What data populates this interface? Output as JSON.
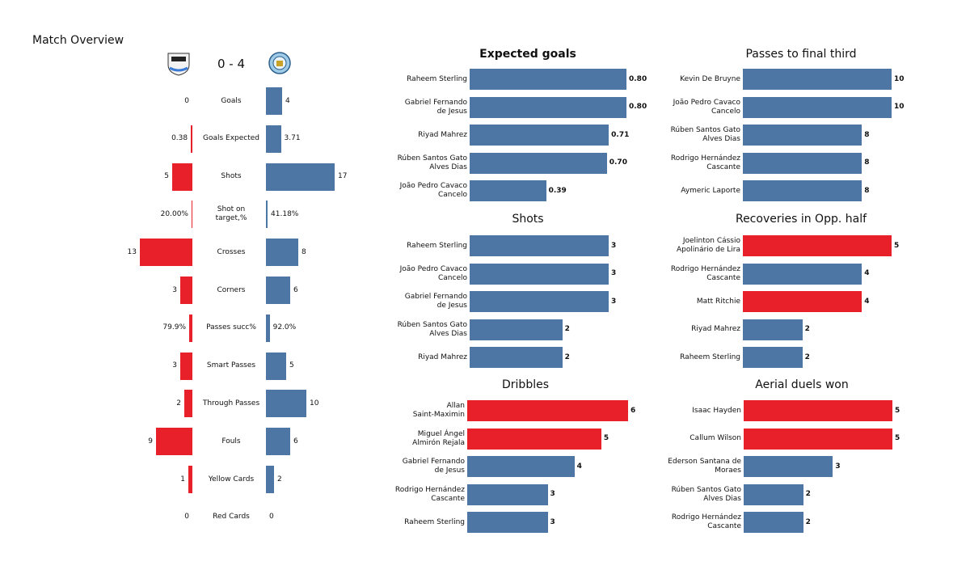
{
  "chart_data": [
    {
      "type": "mirror_bar",
      "title": "Match Overview",
      "score": "0 - 4",
      "categories": [
        "Goals",
        "Goals Expected",
        "Shots",
        "Shot on\ntarget,%",
        "Crosses",
        "Corners",
        "Passes succ%",
        "Smart Passes",
        "Through Passes",
        "Fouls",
        "Yellow Cards",
        "Red Cards"
      ],
      "series": [
        {
          "color": "#e8202a",
          "values": [
            0,
            0.38,
            5,
            0.2,
            13,
            3,
            0.799,
            3,
            2,
            9,
            1,
            0
          ],
          "value_labels": [
            "0",
            "0.38",
            "5",
            "20.00%",
            "13",
            "3",
            "79.9%",
            "3",
            "2",
            "9",
            "1",
            "0"
          ]
        },
        {
          "color": "#4e76a5",
          "values": [
            4,
            3.71,
            17,
            0.4118,
            8,
            6,
            0.92,
            5,
            10,
            6,
            2,
            0
          ],
          "value_labels": [
            "4",
            "3.71",
            "17",
            "41.18%",
            "8",
            "6",
            "92.0%",
            "5",
            "10",
            "6",
            "2",
            "0"
          ]
        }
      ]
    },
    {
      "type": "hbar",
      "title": "Expected goals",
      "categories": [
        "Raheem Sterling",
        "Gabriel Fernando\nde Jesus",
        "Riyad Mahrez",
        "Rúben  Santos Gato\nAlves Dias",
        "João Pedro Cavaco\nCancelo"
      ],
      "values": [
        0.8,
        0.8,
        0.71,
        0.7,
        0.39
      ],
      "value_labels": [
        "0.80",
        "0.80",
        "0.71",
        "0.70",
        "0.39"
      ],
      "colors": [
        "#4e76a5",
        "#4e76a5",
        "#4e76a5",
        "#4e76a5",
        "#4e76a5"
      ]
    },
    {
      "type": "hbar",
      "title": "Shots",
      "categories": [
        "Raheem Sterling",
        "João Pedro Cavaco\nCancelo",
        "Gabriel Fernando\nde Jesus",
        "Rúben  Santos Gato\nAlves Dias",
        "Riyad Mahrez"
      ],
      "values": [
        3,
        3,
        3,
        2,
        2
      ],
      "colors": [
        "#4e76a5",
        "#4e76a5",
        "#4e76a5",
        "#4e76a5",
        "#4e76a5"
      ]
    },
    {
      "type": "hbar",
      "title": "Dribbles",
      "categories": [
        "Allan\nSaint-Maximin",
        "Miguel Ángel\nAlmirón Rejala",
        "Gabriel Fernando\nde Jesus",
        "Rodrigo Hernández\nCascante",
        "Raheem Sterling"
      ],
      "values": [
        6,
        5,
        4,
        3,
        3
      ],
      "colors": [
        "#e8202a",
        "#e8202a",
        "#4e76a5",
        "#4e76a5",
        "#4e76a5"
      ]
    },
    {
      "type": "hbar",
      "title": "Passes to final third",
      "categories": [
        "Kevin De Bruyne",
        "João Pedro Cavaco\nCancelo",
        "Rúben  Santos Gato\nAlves Dias",
        "Rodrigo Hernández\nCascante",
        "Aymeric  Laporte"
      ],
      "values": [
        10,
        10,
        8,
        8,
        8
      ],
      "colors": [
        "#4e76a5",
        "#4e76a5",
        "#4e76a5",
        "#4e76a5",
        "#4e76a5"
      ]
    },
    {
      "type": "hbar",
      "title": "Recoveries in Opp. half",
      "categories": [
        "Joelinton Cássio\nApolinário de Lira",
        "Rodrigo Hernández\nCascante",
        "Matt Ritchie",
        "Riyad Mahrez",
        "Raheem Sterling"
      ],
      "values": [
        5,
        4,
        4,
        2,
        2
      ],
      "colors": [
        "#e8202a",
        "#4e76a5",
        "#e8202a",
        "#4e76a5",
        "#4e76a5"
      ]
    },
    {
      "type": "hbar",
      "title": "Aerial duels won",
      "categories": [
        "Isaac Hayden",
        "Callum Wilson",
        "Ederson Santana de\nMoraes",
        "Rúben  Santos Gato\nAlves Dias",
        "Rodrigo Hernández\nCascante"
      ],
      "values": [
        5,
        5,
        3,
        2,
        2
      ],
      "colors": [
        "#e8202a",
        "#e8202a",
        "#4e76a5",
        "#4e76a5",
        "#4e76a5"
      ]
    }
  ]
}
